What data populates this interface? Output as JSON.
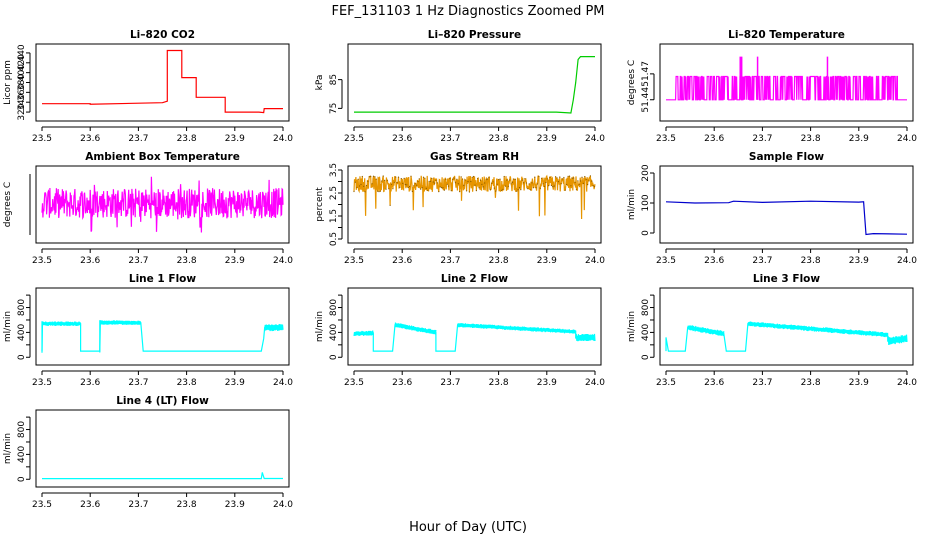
{
  "figure": {
    "title": "FEF_131103  1 Hz Diagnostics Zoomed PM",
    "xlabel": "Hour of Day (UTC)"
  },
  "chart_data": [
    {
      "type": "line",
      "title": "Li–820 CO2",
      "ylabel": "Licor ppm",
      "color": "#ff0000",
      "xlim": [
        23.5,
        24.0
      ],
      "xticks": [
        "23.5",
        "23.6",
        "23.7",
        "23.8",
        "23.9",
        "24.0"
      ],
      "ylim": [
        310,
        450
      ],
      "yticks": [
        320,
        340,
        360,
        380,
        400,
        420,
        440
      ],
      "series": [
        {
          "x": [
            23.5,
            23.6,
            23.6,
            23.75,
            23.76,
            23.76,
            23.79,
            23.79,
            23.82,
            23.82,
            23.88,
            23.88,
            23.95,
            23.96,
            23.961,
            24.0
          ],
          "y": [
            337,
            337,
            336,
            339,
            342,
            445,
            445,
            390,
            390,
            350,
            350,
            320,
            320,
            319,
            327,
            327
          ]
        }
      ]
    },
    {
      "type": "line",
      "title": "Li–820 Pressure",
      "ylabel": "kPa",
      "color": "#00cc00",
      "xlim": [
        23.5,
        24.0
      ],
      "xticks": [
        "23.5",
        "23.6",
        "23.7",
        "23.8",
        "23.9",
        "24.0"
      ],
      "ylim": [
        72,
        96
      ],
      "yticks": [
        75,
        85
      ],
      "ytick_labels": [
        "75",
        "85"
      ],
      "series": [
        {
          "x": [
            23.5,
            23.85,
            23.92,
            23.95,
            23.955,
            23.96,
            23.965,
            23.97,
            24.0
          ],
          "y": [
            73.7,
            73.7,
            73.7,
            73.4,
            78,
            84,
            92,
            93,
            93
          ]
        }
      ]
    },
    {
      "type": "line",
      "title": "Li–820 Temperature",
      "ylabel": "degrees C",
      "color": "#ff00ff",
      "xlim": [
        23.5,
        24.0
      ],
      "xticks": [
        "23.5",
        "23.6",
        "23.7",
        "23.8",
        "23.9",
        "24.0"
      ],
      "ylim": [
        51.42,
        51.5
      ],
      "yticks": [
        51.44,
        51.47
      ],
      "ytick_labels": [
        "51.44",
        "51.47"
      ],
      "noise": {
        "mode": "binary",
        "low": 51.44,
        "high": 51.467,
        "spike": 51.49,
        "start": 23.52,
        "end": 23.98,
        "density": 0.85,
        "spikes": [
          23.654,
          23.657,
          23.69,
          23.835
        ]
      }
    },
    {
      "type": "line",
      "title": "Ambient Box Temperature",
      "ylabel": "degrees C",
      "color": "#ff00ff",
      "xlim": [
        23.5,
        24.0
      ],
      "xticks": [
        "23.5",
        "23.6",
        "23.7",
        "23.8",
        "23.9",
        "24.0"
      ],
      "ylim": [
        0,
        1
      ],
      "yticks": [],
      "noise": {
        "mode": "dense",
        "center": 0.52,
        "amp": 0.22,
        "start": 23.5,
        "end": 24.0,
        "outliers": 0.06,
        "outlier_amp": 0.45
      }
    },
    {
      "type": "line",
      "title": "Gas Stream RH",
      "ylabel": "percent",
      "color": "#e69500",
      "xlim": [
        23.5,
        24.0
      ],
      "xticks": [
        "23.5",
        "23.6",
        "23.7",
        "23.8",
        "23.9",
        "24.0"
      ],
      "ylim": [
        0.5,
        3.5
      ],
      "yticks": [
        0.5,
        1.0,
        1.5,
        2.0,
        2.5,
        3.0,
        3.5
      ],
      "ytick_labels": [
        "0.5",
        "1.5",
        "2.5",
        "3.5"
      ],
      "noise": {
        "mode": "dense",
        "center": 2.9,
        "amp": 0.35,
        "start": 23.5,
        "end": 24.0,
        "outliers": 0.04,
        "outlier_amp": 1.6,
        "downonly": true
      }
    },
    {
      "type": "line",
      "title": "Sample Flow",
      "ylabel": "ml/min",
      "color": "#0000cc",
      "xlim": [
        23.5,
        24.0
      ],
      "xticks": [
        "23.5",
        "23.6",
        "23.7",
        "23.8",
        "23.9",
        "24.0"
      ],
      "ylim": [
        -20,
        210
      ],
      "yticks": [
        0,
        100,
        200
      ],
      "series": [
        {
          "x": [
            23.5,
            23.56,
            23.63,
            23.64,
            23.7,
            23.8,
            23.9,
            23.91,
            23.915,
            23.93,
            24.0
          ],
          "y": [
            104,
            100,
            101,
            106,
            102,
            106,
            103,
            104,
            -5,
            -2,
            -4
          ]
        }
      ]
    },
    {
      "type": "line",
      "title": "Line 1 Flow",
      "ylabel": "ml/min",
      "color": "#00ffff",
      "xlim": [
        23.5,
        24.0
      ],
      "xticks": [
        "23.5",
        "23.6",
        "23.7",
        "23.8",
        "23.9",
        "24.0"
      ],
      "ylim": [
        -60,
        1050
      ],
      "yticks": [
        0,
        200,
        400,
        600,
        800,
        1000
      ],
      "ytick_labels": [
        "0",
        "400",
        "800"
      ],
      "series": [
        {
          "x": [
            23.5,
            23.5,
            23.502,
            23.58,
            23.58,
            23.62,
            23.62,
            23.623,
            23.705,
            23.71,
            23.955,
            23.96,
            23.962,
            24.0
          ],
          "y": [
            100,
            560,
            540,
            540,
            100,
            100,
            580,
            560,
            555,
            100,
            100,
            300,
            480,
            480
          ]
        }
      ],
      "band": [
        {
          "x0": 23.5,
          "x1": 23.58,
          "w": 70
        },
        {
          "x0": 23.62,
          "x1": 23.705,
          "w": 70
        },
        {
          "x0": 23.962,
          "x1": 24.0,
          "w": 120
        }
      ]
    },
    {
      "type": "line",
      "title": "Line 2 Flow",
      "ylabel": "ml/min",
      "color": "#00ffff",
      "xlim": [
        23.5,
        24.0
      ],
      "xticks": [
        "23.5",
        "23.6",
        "23.7",
        "23.8",
        "23.9",
        "24.0"
      ],
      "ylim": [
        -60,
        1050
      ],
      "yticks": [
        0,
        200,
        400,
        600,
        800,
        1000
      ],
      "ytick_labels": [
        "0",
        "400",
        "800"
      ],
      "series": [
        {
          "x": [
            23.5,
            23.54,
            23.54,
            23.58,
            23.585,
            23.67,
            23.67,
            23.71,
            23.715,
            23.96,
            23.96,
            24.0
          ],
          "y": [
            380,
            390,
            100,
            100,
            520,
            400,
            100,
            100,
            520,
            410,
            310,
            320
          ]
        }
      ],
      "band": [
        {
          "x0": 23.5,
          "x1": 23.54,
          "w": 80
        },
        {
          "x0": 23.585,
          "x1": 23.67,
          "w": 80
        },
        {
          "x0": 23.715,
          "x1": 23.96,
          "w": 70
        },
        {
          "x0": 23.96,
          "x1": 24.0,
          "w": 120
        }
      ]
    },
    {
      "type": "line",
      "title": "Line 3 Flow",
      "ylabel": "ml/min",
      "color": "#00ffff",
      "xlim": [
        23.5,
        24.0
      ],
      "xticks": [
        "23.5",
        "23.6",
        "23.7",
        "23.8",
        "23.9",
        "24.0"
      ],
      "ylim": [
        -60,
        1050
      ],
      "yticks": [
        0,
        200,
        400,
        600,
        800,
        1000
      ],
      "ytick_labels": [
        "0",
        "400",
        "800"
      ],
      "series": [
        {
          "x": [
            23.5,
            23.5,
            23.505,
            23.54,
            23.545,
            23.62,
            23.625,
            23.665,
            23.67,
            23.96,
            23.96,
            24.0
          ],
          "y": [
            100,
            320,
            100,
            100,
            480,
            380,
            100,
            100,
            540,
            360,
            260,
            300
          ]
        }
      ],
      "band": [
        {
          "x0": 23.545,
          "x1": 23.62,
          "w": 90
        },
        {
          "x0": 23.67,
          "x1": 23.96,
          "w": 80
        },
        {
          "x0": 23.96,
          "x1": 24.0,
          "w": 130
        }
      ]
    },
    {
      "type": "line",
      "title": "Line 4 (LT) Flow",
      "ylabel": "ml/min",
      "color": "#00ffff",
      "xlim": [
        23.5,
        24.0
      ],
      "xticks": [
        "23.5",
        "23.6",
        "23.7",
        "23.8",
        "23.9",
        "24.0"
      ],
      "ylim": [
        -60,
        1050
      ],
      "yticks": [
        0,
        200,
        400,
        600,
        800,
        1000
      ],
      "ytick_labels": [
        "0",
        "400",
        "800"
      ],
      "series": [
        {
          "x": [
            23.5,
            23.955,
            23.957,
            23.959,
            23.961,
            24.0
          ],
          "y": [
            10,
            10,
            110,
            60,
            12,
            12
          ]
        }
      ]
    }
  ]
}
